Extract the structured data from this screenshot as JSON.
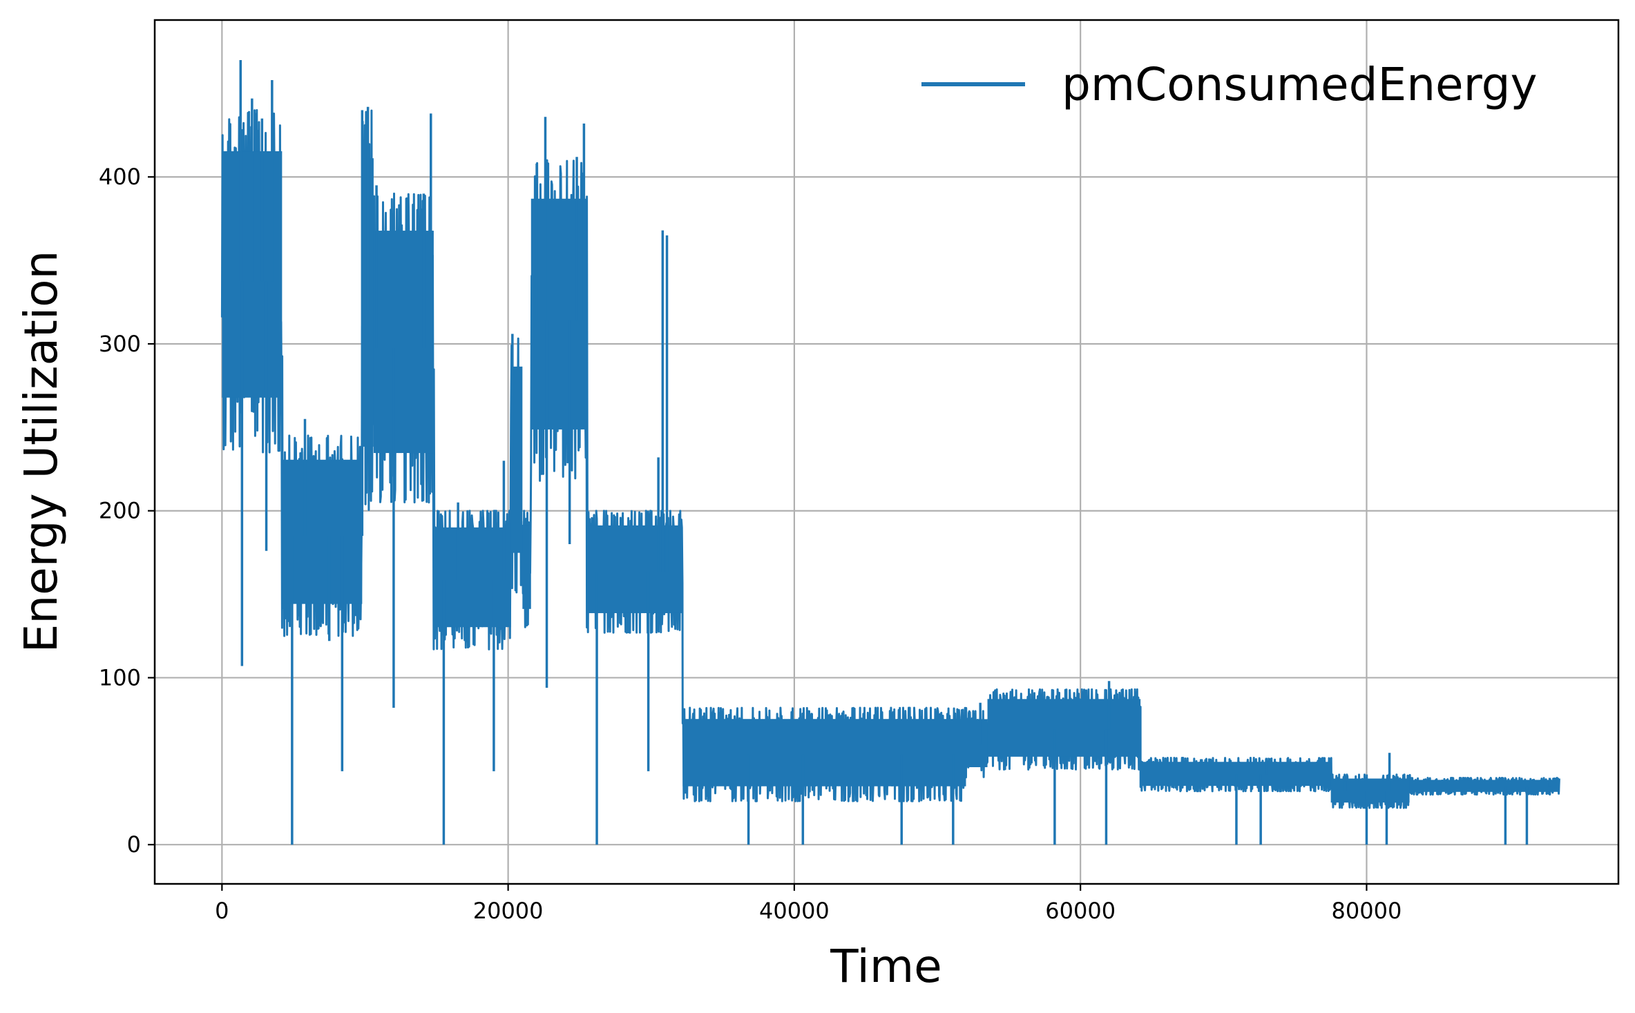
{
  "chart_data": {
    "type": "line",
    "title": "",
    "xlabel": "Time",
    "ylabel": "Energy Utilization",
    "xlim": [
      -4700,
      97600
    ],
    "ylim": [
      -23.5,
      494
    ],
    "xticks": [
      0,
      20000,
      40000,
      60000,
      80000
    ],
    "yticks": [
      0,
      100,
      200,
      300,
      400
    ],
    "grid": true,
    "legend_position": "top-right",
    "series_color": "#1f77b4",
    "series": [
      {
        "name": "pmConsumedEnergy",
        "segments": [
          {
            "x": [
              0,
              4200
            ],
            "low": 235,
            "high": 440
          },
          {
            "x": [
              4200,
              9800
            ],
            "low": 125,
            "high": 245
          },
          {
            "x": [
              9800,
              10600
            ],
            "low": 200,
            "high": 440
          },
          {
            "x": [
              10600,
              14800
            ],
            "low": 205,
            "high": 390
          },
          {
            "x": [
              14800,
              20200
            ],
            "low": 117,
            "high": 200
          },
          {
            "x": [
              20200,
              21000
            ],
            "low": 150,
            "high": 305
          },
          {
            "x": [
              21000,
              21600
            ],
            "low": 130,
            "high": 200
          },
          {
            "x": [
              21600,
              25500
            ],
            "low": 218,
            "high": 410
          },
          {
            "x": [
              25500,
              32200
            ],
            "low": 127,
            "high": 200
          },
          {
            "x": [
              32200,
              52000
            ],
            "low": 26,
            "high": 82
          },
          {
            "x": [
              52000,
              53500
            ],
            "low": 40,
            "high": 80
          },
          {
            "x": [
              53500,
              64200
            ],
            "low": 45,
            "high": 93
          },
          {
            "x": [
              64200,
              77500
            ],
            "low": 32,
            "high": 52
          },
          {
            "x": [
              77500,
              83000
            ],
            "low": 22,
            "high": 42
          },
          {
            "x": [
              83000,
              93500
            ],
            "low": 30,
            "high": 40
          }
        ],
        "spikes": [
          {
            "x": 1300,
            "y": 470
          },
          {
            "x": 1400,
            "y": 107
          },
          {
            "x": 2100,
            "y": 447
          },
          {
            "x": 2800,
            "y": 435
          },
          {
            "x": 3100,
            "y": 176
          },
          {
            "x": 3500,
            "y": 458
          },
          {
            "x": 4400,
            "y": 135
          },
          {
            "x": 4900,
            "y": 0
          },
          {
            "x": 5800,
            "y": 255
          },
          {
            "x": 7500,
            "y": 122
          },
          {
            "x": 8400,
            "y": 44
          },
          {
            "x": 9800,
            "y": 440
          },
          {
            "x": 10200,
            "y": 442
          },
          {
            "x": 10800,
            "y": 395
          },
          {
            "x": 12000,
            "y": 82
          },
          {
            "x": 14100,
            "y": 390
          },
          {
            "x": 14600,
            "y": 438
          },
          {
            "x": 15500,
            "y": 0
          },
          {
            "x": 16500,
            "y": 205
          },
          {
            "x": 19000,
            "y": 44
          },
          {
            "x": 19700,
            "y": 230
          },
          {
            "x": 20300,
            "y": 306
          },
          {
            "x": 22000,
            "y": 408
          },
          {
            "x": 22600,
            "y": 436
          },
          {
            "x": 22700,
            "y": 94
          },
          {
            "x": 24300,
            "y": 180
          },
          {
            "x": 24800,
            "y": 412
          },
          {
            "x": 25300,
            "y": 432
          },
          {
            "x": 26200,
            "y": 0
          },
          {
            "x": 29800,
            "y": 44
          },
          {
            "x": 30500,
            "y": 232
          },
          {
            "x": 30800,
            "y": 368
          },
          {
            "x": 31100,
            "y": 365
          },
          {
            "x": 32100,
            "y": 188
          },
          {
            "x": 36800,
            "y": 0
          },
          {
            "x": 40600,
            "y": 0
          },
          {
            "x": 47500,
            "y": 0
          },
          {
            "x": 51100,
            "y": 0
          },
          {
            "x": 53000,
            "y": 85
          },
          {
            "x": 58200,
            "y": 0
          },
          {
            "x": 61800,
            "y": 0
          },
          {
            "x": 62000,
            "y": 98
          },
          {
            "x": 70900,
            "y": 0
          },
          {
            "x": 72600,
            "y": 0
          },
          {
            "x": 73000,
            "y": 52
          },
          {
            "x": 78500,
            "y": 38
          },
          {
            "x": 80000,
            "y": 0
          },
          {
            "x": 81400,
            "y": 0
          },
          {
            "x": 81600,
            "y": 55
          },
          {
            "x": 89700,
            "y": 0
          },
          {
            "x": 91200,
            "y": 0
          },
          {
            "x": 92800,
            "y": 40
          }
        ]
      }
    ]
  }
}
